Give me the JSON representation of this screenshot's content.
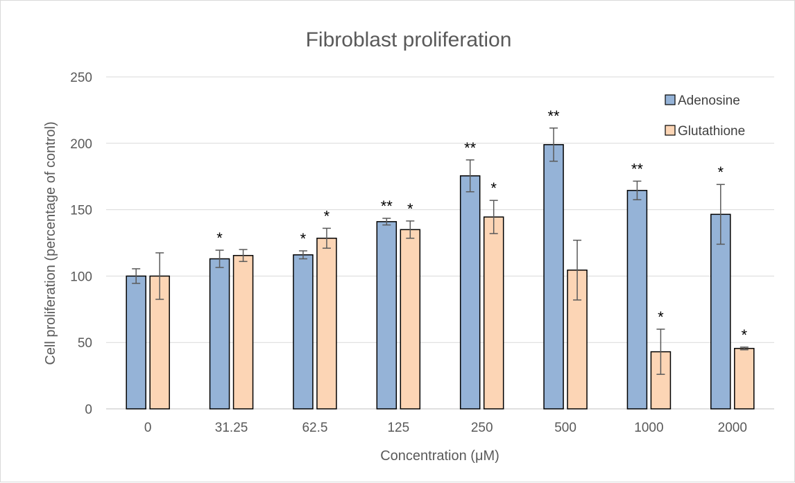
{
  "chart_data": {
    "type": "bar",
    "title": "Fibroblast proliferation",
    "xlabel": "Concentration (μM)",
    "ylabel": "Cell proliferation (percentage of control)",
    "categories": [
      "0",
      "31.25",
      "62.5",
      "125",
      "250",
      "500",
      "1000",
      "2000"
    ],
    "ylim": [
      0,
      250
    ],
    "yticks": [
      "0",
      "50",
      "100",
      "150",
      "200",
      "250"
    ],
    "grid": true,
    "legend_position": "top-right",
    "series": [
      {
        "name": "Adenosine",
        "color": "#95b3d7",
        "values": [
          100,
          113,
          116,
          141,
          175.5,
          199,
          164.5,
          146.5
        ],
        "errors": [
          5.5,
          6.5,
          3,
          2.5,
          12,
          12.5,
          7,
          22.5
        ],
        "significance": [
          "",
          "*",
          "*",
          "**",
          "**",
          "**",
          "**",
          "*"
        ]
      },
      {
        "name": "Glutathione",
        "color": "#fcd5b5",
        "values": [
          100,
          115.5,
          128.5,
          135,
          144.5,
          104.5,
          43,
          45.5
        ],
        "errors": [
          17.5,
          4.5,
          7.5,
          6.5,
          12.5,
          22.5,
          17,
          1
        ],
        "significance": [
          "",
          "",
          "*",
          "*",
          "*",
          "",
          "*",
          "*"
        ]
      }
    ]
  }
}
